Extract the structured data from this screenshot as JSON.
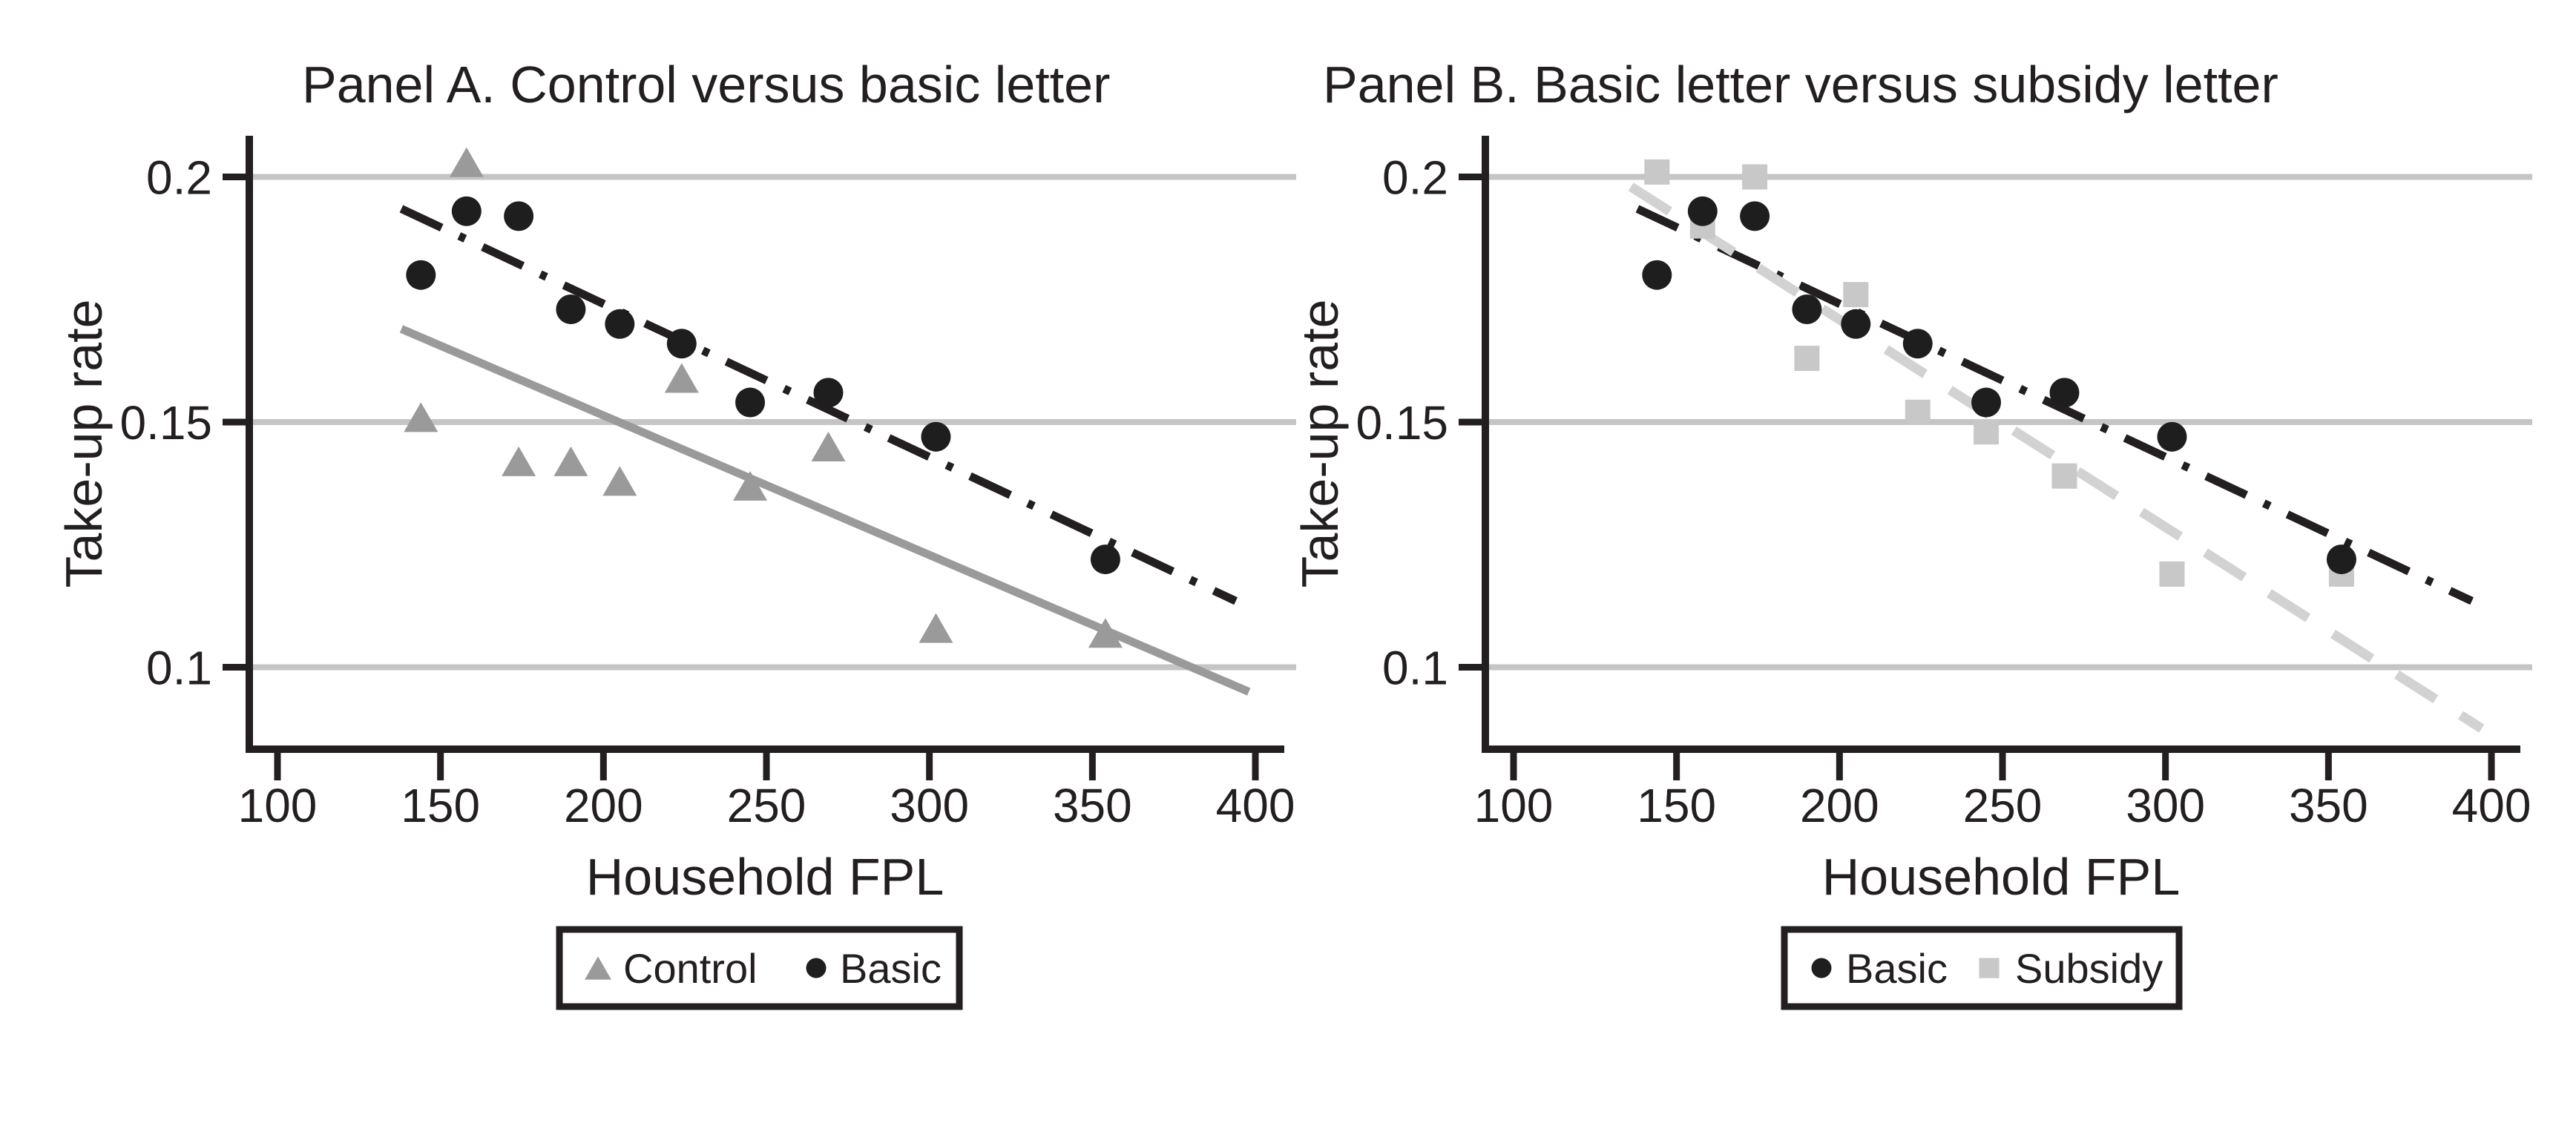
{
  "colors": {
    "black": "#231f20",
    "basic_marker": "#1e1e1e",
    "control_gray": "#9a9a9a",
    "subsidy_gray": "#c8c8c8",
    "subsidy_line_gray": "#d2d2d2",
    "gridline_gray": "#c5c5c5",
    "background": "#ffffff"
  },
  "chart_data": [
    {
      "type": "scatter",
      "panel": "A",
      "title": "Panel A. Control versus basic letter",
      "xlabel": "Household FPL",
      "ylabel": "Take-up rate",
      "xlim": [
        91,
        408
      ],
      "ylim": [
        0.082,
        0.208
      ],
      "xticks": [
        100,
        150,
        200,
        250,
        300,
        350,
        400
      ],
      "yticks": [
        0.2,
        0.15,
        0.1
      ],
      "ytick_labels": [
        "0.2",
        "0.15",
        "0.1"
      ],
      "grid": "horizontal-only",
      "legend_position": "below",
      "x": [
        144,
        158,
        174,
        190,
        205,
        224,
        245,
        269,
        302,
        354
      ],
      "series": [
        {
          "name": "Control",
          "marker": "triangle",
          "line_style": "solid",
          "values": [
            0.151,
            0.203,
            0.142,
            0.142,
            0.138,
            0.159,
            0.137,
            0.145,
            0.108,
            0.107
          ],
          "fit": {
            "x1": 138,
            "y1": 0.169,
            "x2": 398,
            "y2": 0.095
          }
        },
        {
          "name": "Basic",
          "marker": "circle",
          "line_style": "dashdot",
          "values": [
            0.18,
            0.193,
            0.192,
            0.173,
            0.17,
            0.166,
            0.154,
            0.156,
            0.147,
            0.122
          ],
          "fit": {
            "x1": 138,
            "y1": 0.1935,
            "x2": 394,
            "y2": 0.1135
          }
        }
      ]
    },
    {
      "type": "scatter",
      "panel": "B",
      "title": "Panel B. Basic letter versus subsidy letter",
      "xlabel": "Household FPL",
      "ylabel": "Take-up rate",
      "xlim": [
        91,
        408
      ],
      "ylim": [
        0.082,
        0.208
      ],
      "xticks": [
        100,
        150,
        200,
        250,
        300,
        350,
        400
      ],
      "yticks": [
        0.2,
        0.15,
        0.1
      ],
      "ytick_labels": [
        "0.2",
        "0.15",
        "0.1"
      ],
      "grid": "horizontal-only",
      "legend_position": "below",
      "x": [
        144,
        158,
        174,
        190,
        205,
        224,
        245,
        269,
        302,
        354
      ],
      "series": [
        {
          "name": "Basic",
          "marker": "circle",
          "line_style": "dashdot",
          "values": [
            0.18,
            0.193,
            0.192,
            0.173,
            0.17,
            0.166,
            0.154,
            0.156,
            0.147,
            0.122
          ],
          "fit": {
            "x1": 138,
            "y1": 0.1935,
            "x2": 394,
            "y2": 0.1135
          }
        },
        {
          "name": "Subsidy",
          "marker": "square",
          "line_style": "dash",
          "values": [
            0.201,
            0.19,
            0.2,
            0.163,
            0.176,
            0.152,
            0.148,
            0.139,
            0.119,
            0.119
          ],
          "fit": {
            "x1": 136,
            "y1": 0.198,
            "x2": 397,
            "y2": 0.0875
          }
        }
      ]
    }
  ]
}
